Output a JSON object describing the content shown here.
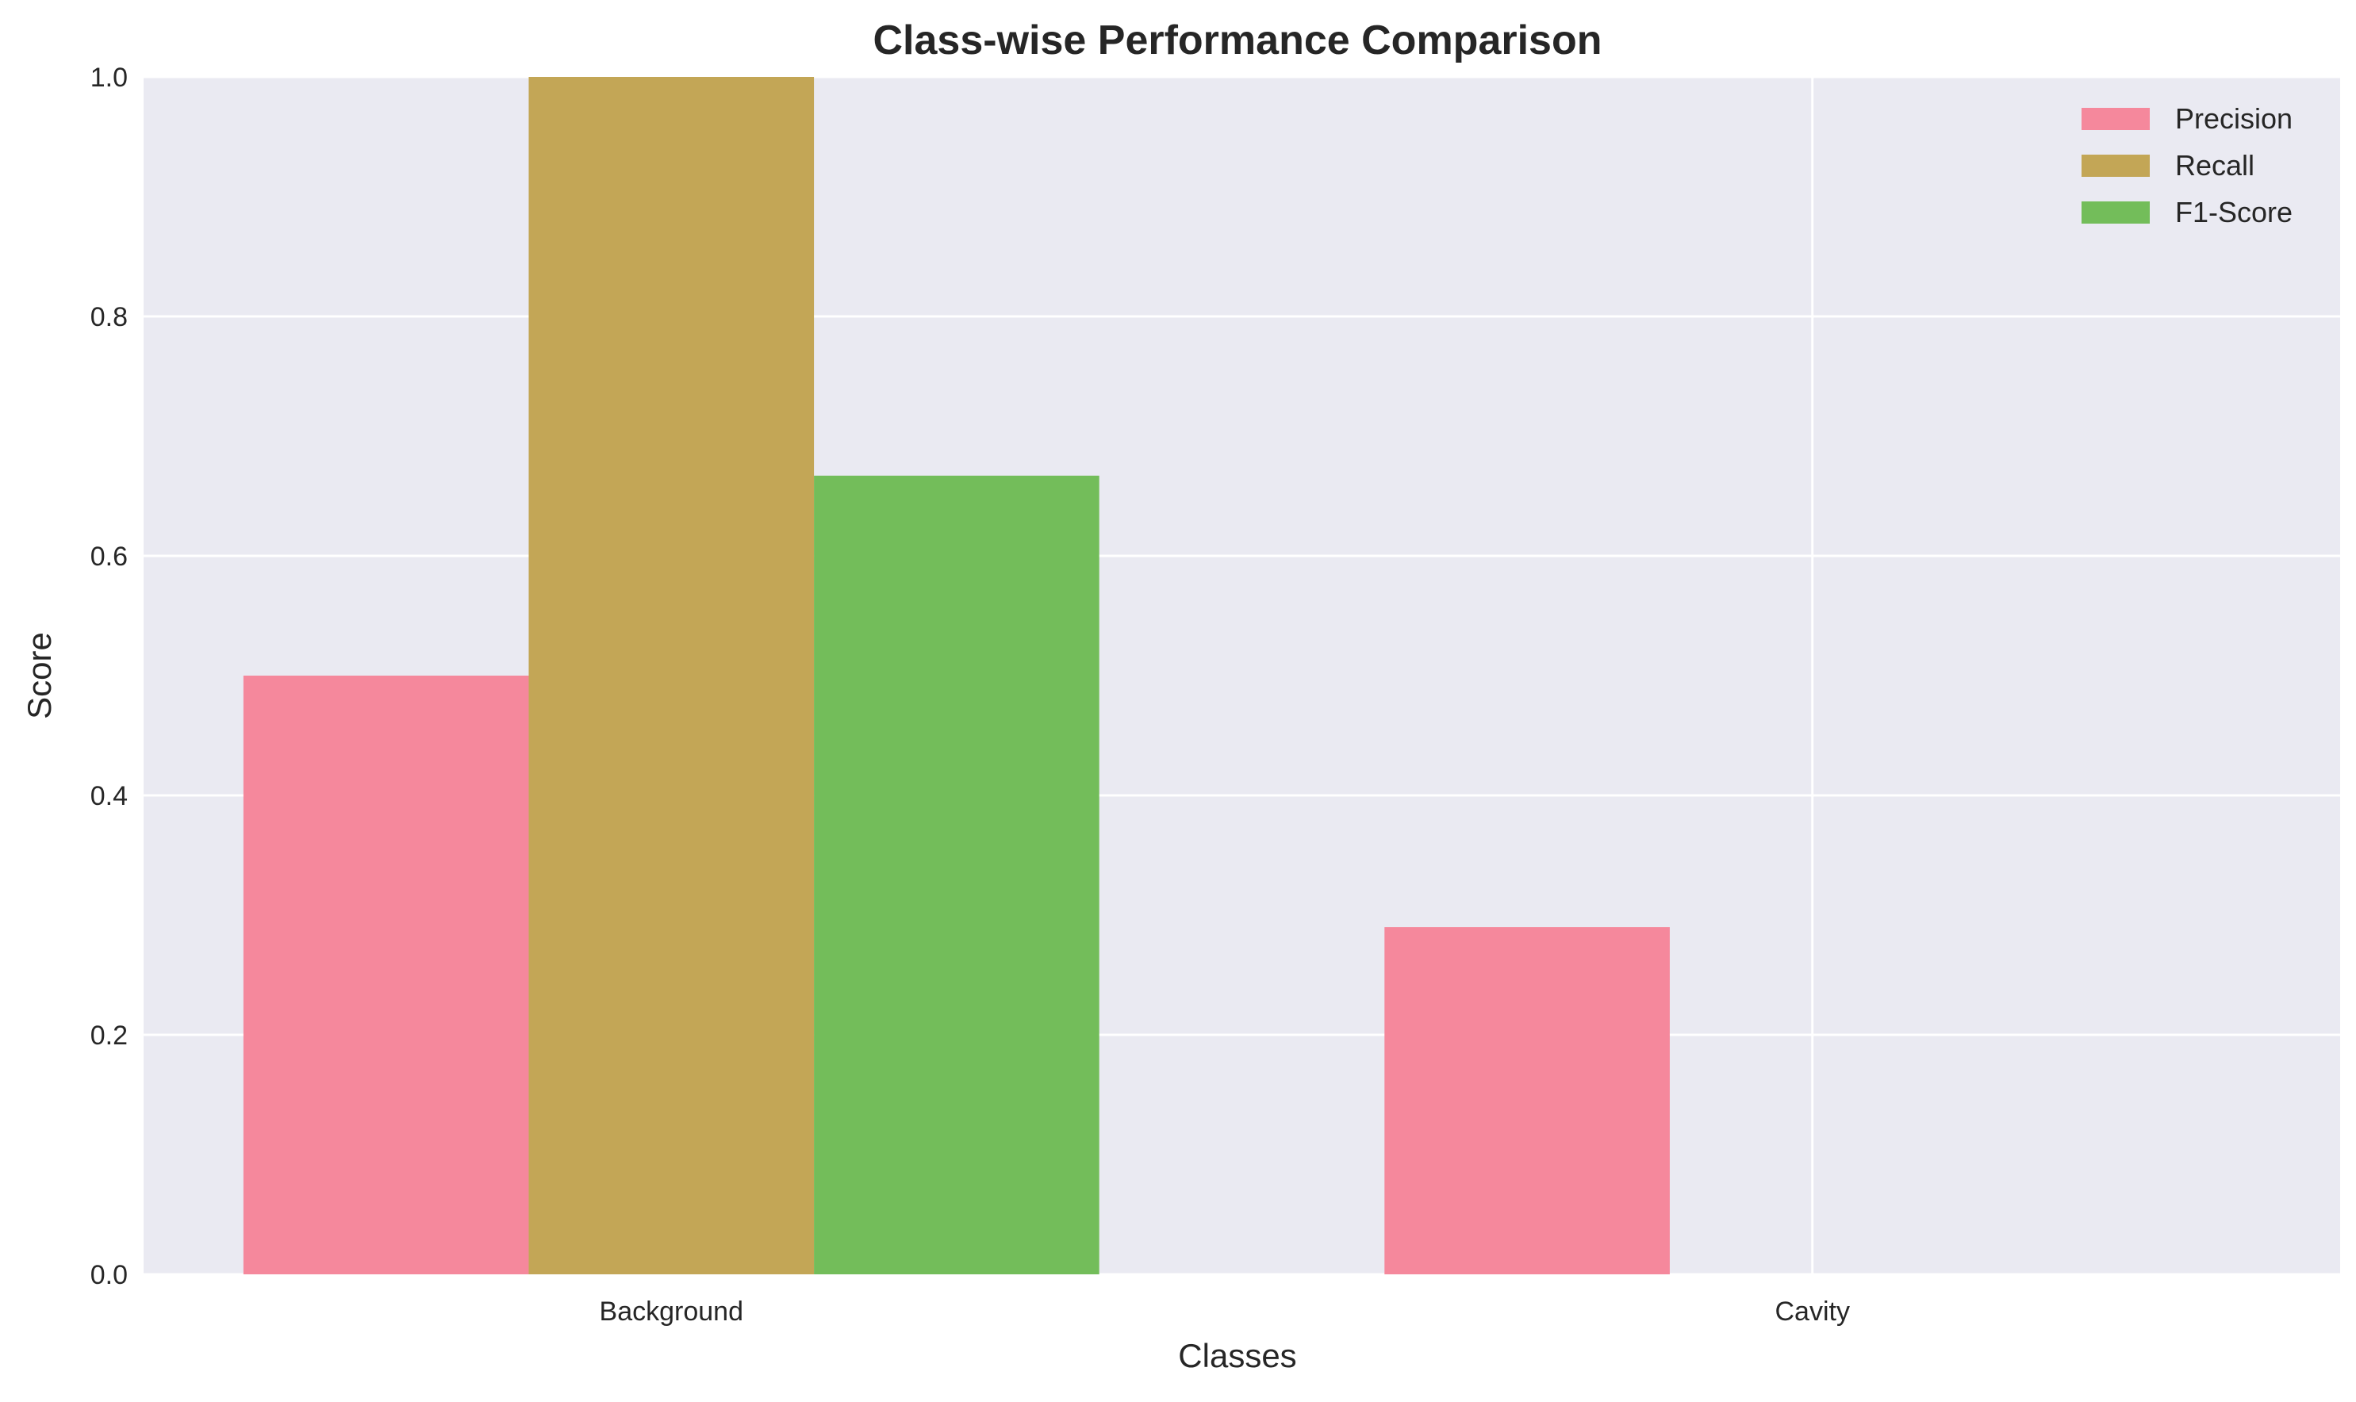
{
  "chart_data": {
    "type": "bar",
    "title": "Class-wise Performance Comparison",
    "xlabel": "Classes",
    "ylabel": "Score",
    "categories": [
      "Background",
      "Cavity"
    ],
    "series": [
      {
        "name": "Precision",
        "values": [
          0.5,
          0.29
        ],
        "color": "#f5889c"
      },
      {
        "name": "Recall",
        "values": [
          1.0,
          0.0
        ],
        "color": "#c3a656"
      },
      {
        "name": "F1-Score",
        "values": [
          0.667,
          0.0
        ],
        "color": "#73bd5a"
      }
    ],
    "ylim": [
      0,
      1
    ],
    "yticks": [
      "0.0",
      "0.2",
      "0.4",
      "0.6",
      "0.8",
      "1.0"
    ],
    "grid": true,
    "legend_position": "top-right",
    "background_color": "#eaeaf2",
    "grid_color": "#ffffff"
  }
}
